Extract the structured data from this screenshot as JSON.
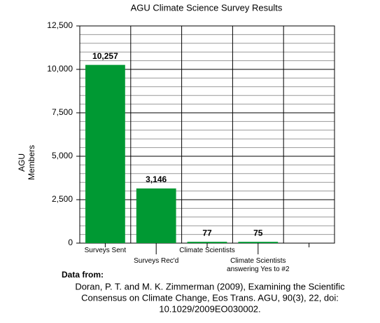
{
  "chart_data": {
    "type": "bar",
    "title": "AGU Climate Science Survey Results",
    "ylabel": [
      "AGU",
      "Members"
    ],
    "categories": [
      "Surveys Sent",
      "Surveys Rec'd",
      "Climate Scientists",
      "Climate Scientists answering Yes to #2",
      null
    ],
    "values": [
      10257,
      3146,
      77,
      75,
      null
    ],
    "value_labels": [
      "10,257",
      "3,146",
      "77",
      "75",
      null
    ],
    "color": "#009933",
    "ylim": [
      0,
      12500
    ],
    "yticks": [
      0,
      {
        "value": 2500,
        "label": "2,500"
      },
      {
        "value": 5000,
        "label": "5,000"
      },
      {
        "value": 7500,
        "label": "7,500"
      },
      {
        "value": 10000,
        "label": "10,000"
      },
      {
        "value": 12500,
        "label": "12,500"
      }
    ],
    "grid": true,
    "yminor_step": 500,
    "source_heading": "Data from:",
    "source_lines": [
      "Doran, P. T. and M. K. Zimmerman (2009), Examining the Scientific",
      "Consensus on Climate Change, Eos Trans. AGU, 90(3), 22, doi:",
      "10.1029/2009EO030002."
    ]
  }
}
